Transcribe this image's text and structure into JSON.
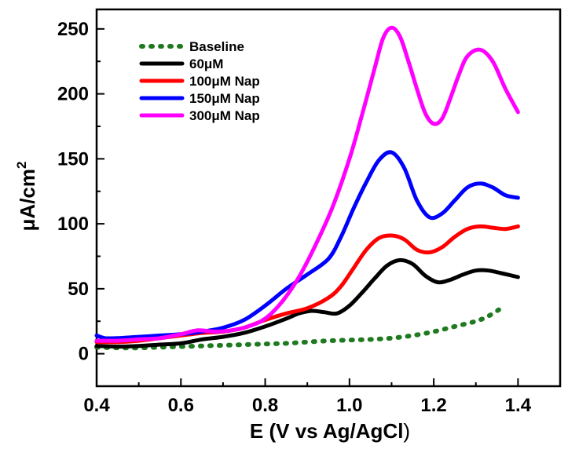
{
  "chart_data": {
    "type": "line",
    "title": "",
    "xlabel": "E (V vs Ag/AgCl",
    "xlabel_close": ")",
    "ylabel": "μA/cm",
    "ylabel_sup": "2",
    "xlim": [
      0.4,
      1.5
    ],
    "ylim": [
      -25,
      265
    ],
    "xticks": [
      0.4,
      0.6,
      0.8,
      1.0,
      1.2,
      1.4
    ],
    "xtick_labels": [
      "0.4",
      "0.6",
      "0.8",
      "1.0",
      "1.2",
      "1.4"
    ],
    "yticks": [
      0,
      50,
      100,
      150,
      200,
      250
    ],
    "ytick_labels": [
      "0",
      "50",
      "100",
      "150",
      "200",
      "250"
    ],
    "grid": false,
    "legend_position": "top-left",
    "series": [
      {
        "name": "Baseline",
        "color": "#1f7a1f",
        "dash": "dotted",
        "x": [
          0.4,
          0.45,
          0.5,
          0.55,
          0.6,
          0.65,
          0.7,
          0.75,
          0.8,
          0.85,
          0.9,
          0.95,
          1.0,
          1.05,
          1.1,
          1.15,
          1.2,
          1.25,
          1.3,
          1.33,
          1.36
        ],
        "y": [
          5,
          4.5,
          4.5,
          5,
          5.5,
          6,
          6.5,
          7,
          7.5,
          8,
          9,
          10,
          10.5,
          11,
          12,
          14,
          17,
          21,
          25,
          29,
          35
        ]
      },
      {
        "name": "60μM",
        "color": "#000000",
        "dash": "solid",
        "x": [
          0.4,
          0.45,
          0.5,
          0.55,
          0.6,
          0.65,
          0.7,
          0.75,
          0.8,
          0.85,
          0.88,
          0.91,
          0.94,
          0.97,
          1.0,
          1.03,
          1.06,
          1.09,
          1.12,
          1.15,
          1.18,
          1.21,
          1.24,
          1.27,
          1.3,
          1.33,
          1.36,
          1.4
        ],
        "y": [
          6,
          5.5,
          6,
          7,
          8,
          11,
          13,
          16,
          21,
          27,
          31,
          33,
          32,
          31,
          37,
          47,
          58,
          68,
          72,
          69,
          60,
          55,
          57,
          61,
          64,
          64,
          62,
          59
        ]
      },
      {
        "name": "100μM Nap",
        "color": "#ff0000",
        "dash": "solid",
        "x": [
          0.4,
          0.45,
          0.5,
          0.55,
          0.6,
          0.65,
          0.7,
          0.75,
          0.8,
          0.85,
          0.9,
          0.95,
          0.98,
          1.01,
          1.04,
          1.07,
          1.1,
          1.13,
          1.16,
          1.19,
          1.22,
          1.25,
          1.28,
          1.31,
          1.34,
          1.37,
          1.4
        ],
        "y": [
          9,
          9,
          10,
          12,
          14,
          16,
          17,
          20,
          26,
          31,
          35,
          43,
          52,
          66,
          80,
          89,
          91,
          88,
          80,
          78,
          82,
          90,
          96,
          98,
          97,
          96,
          98
        ]
      },
      {
        "name": "150μM Nap",
        "color": "#0000ff",
        "dash": "solid",
        "x": [
          0.4,
          0.42,
          0.45,
          0.5,
          0.55,
          0.6,
          0.65,
          0.7,
          0.75,
          0.8,
          0.85,
          0.9,
          0.95,
          0.98,
          1.01,
          1.04,
          1.07,
          1.1,
          1.13,
          1.16,
          1.19,
          1.22,
          1.25,
          1.28,
          1.31,
          1.34,
          1.37,
          1.4
        ],
        "y": [
          14,
          12,
          12,
          13,
          14,
          15,
          17,
          20,
          26,
          37,
          50,
          61,
          73,
          90,
          112,
          132,
          149,
          155,
          143,
          118,
          105,
          108,
          118,
          128,
          131,
          128,
          122,
          120
        ]
      },
      {
        "name": "300μM Nap",
        "color": "#ff00ff",
        "dash": "solid",
        "x": [
          0.4,
          0.45,
          0.5,
          0.55,
          0.6,
          0.64,
          0.68,
          0.72,
          0.76,
          0.8,
          0.84,
          0.88,
          0.92,
          0.96,
          1.0,
          1.03,
          1.06,
          1.08,
          1.1,
          1.12,
          1.14,
          1.16,
          1.18,
          1.2,
          1.22,
          1.24,
          1.26,
          1.28,
          1.31,
          1.34,
          1.37,
          1.4
        ],
        "y": [
          10,
          10,
          11,
          12,
          15,
          18,
          17,
          18,
          21,
          27,
          40,
          59,
          84,
          113,
          150,
          184,
          220,
          243,
          251,
          244,
          225,
          204,
          185,
          177,
          181,
          197,
          215,
          229,
          234,
          225,
          204,
          186
        ]
      }
    ]
  }
}
